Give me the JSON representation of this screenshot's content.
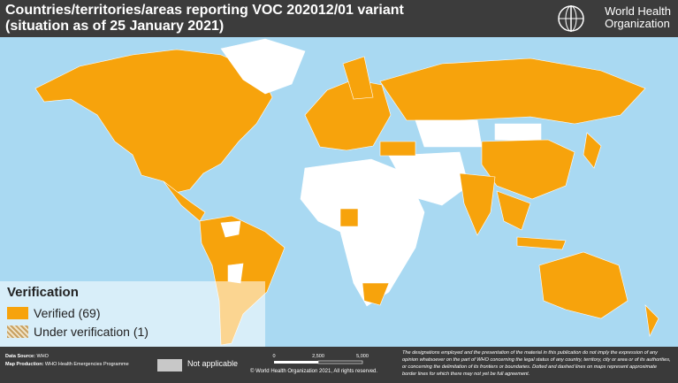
{
  "header": {
    "title_line1": "Countries/territories/areas reporting VOC 202012/01 variant",
    "title_line2": "(situation as of 25 January 2021)",
    "org_line1": "World Health",
    "org_line2": "Organization"
  },
  "legend": {
    "title": "Verification",
    "items": [
      {
        "label": "Verified (69)",
        "color": "#f7a30c"
      },
      {
        "label": "Under verification (1)",
        "color": "#c8a060"
      }
    ],
    "not_applicable": "Not applicable"
  },
  "footer": {
    "data_source_label": "Data Source:",
    "data_source": "WHO",
    "map_production_label": "Map Production:",
    "map_production": "WHO Health Emergencies Programme",
    "copyright": "© World Health Organization  2021, All rights reserved.",
    "scale_ticks": [
      "0",
      "2,500",
      "5,000"
    ],
    "disclaimer": "The designations employed and the presentation of the material in this publication do not imply the expression of any opinion whatsoever on the part of WHO concerning the legal status of any country, territory, city or area or of its authorities, or concerning the delimitation of its frontiers or boundaries. Dotted and dashed lines on maps represent approximate border lines for which there may not yet be full agreement."
  }
}
